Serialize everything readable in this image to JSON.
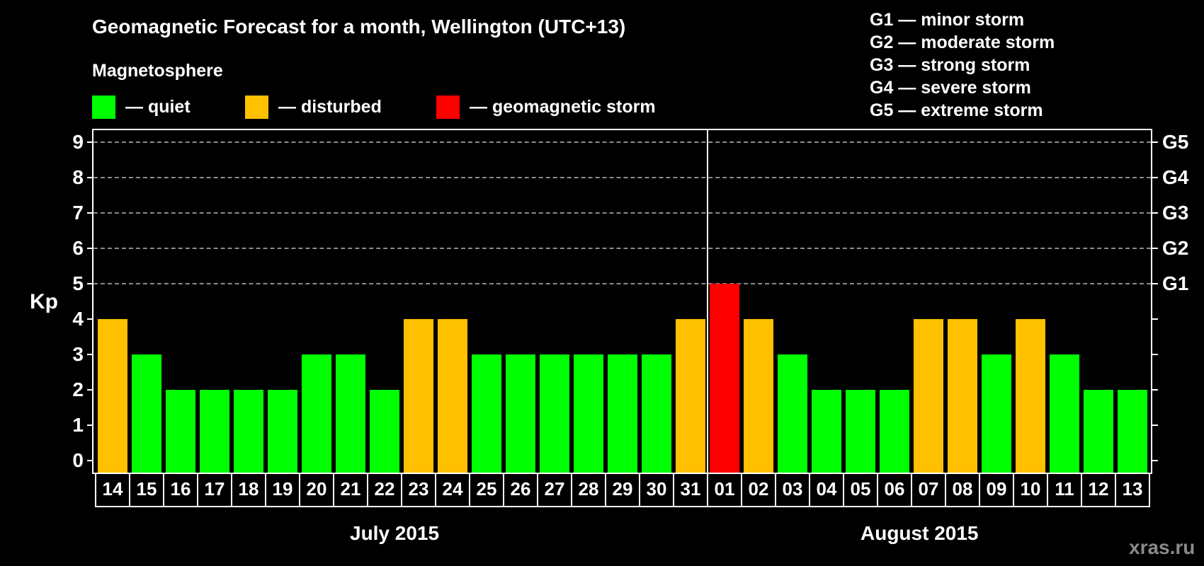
{
  "title": "Geomagnetic Forecast for a month, Wellington (UTC+13)",
  "subtitle": "Magnetosphere",
  "legend": [
    {
      "label": "— quiet",
      "color": "#00ff00"
    },
    {
      "label": "— disturbed",
      "color": "#ffc000"
    },
    {
      "label": "— geomagnetic storm",
      "color": "#ff0000"
    }
  ],
  "g_scale": [
    "G1 — minor storm",
    "G2 — moderate storm",
    "G3 — strong storm",
    "G4 — severe storm",
    "G5 — extreme storm"
  ],
  "axis": {
    "ylabel": "Kp",
    "left_ticks": [
      "0",
      "1",
      "2",
      "3",
      "4",
      "5",
      "6",
      "7",
      "8",
      "9"
    ],
    "right_ticks": [
      {
        "kp": 5,
        "label": "G1"
      },
      {
        "kp": 6,
        "label": "G2"
      },
      {
        "kp": 7,
        "label": "G3"
      },
      {
        "kp": 8,
        "label": "G4"
      },
      {
        "kp": 9,
        "label": "G5"
      }
    ]
  },
  "months": [
    {
      "label": "July 2015"
    },
    {
      "label": "August 2015"
    }
  ],
  "watermark": "xras.ru",
  "colors": {
    "quiet": "#00ff00",
    "disturbed": "#ffc000",
    "storm": "#ff0000"
  },
  "chart_data": {
    "type": "bar",
    "title": "Geomagnetic Forecast for a month, Wellington (UTC+13)",
    "xlabel": "",
    "ylabel": "Kp",
    "ylim": [
      0,
      9
    ],
    "grid": true,
    "legend_position": "top",
    "categories": [
      "14",
      "15",
      "16",
      "17",
      "18",
      "19",
      "20",
      "21",
      "22",
      "23",
      "24",
      "25",
      "26",
      "27",
      "28",
      "29",
      "30",
      "31",
      "01",
      "02",
      "03",
      "04",
      "05",
      "06",
      "07",
      "08",
      "09",
      "10",
      "11",
      "12",
      "13"
    ],
    "month_groups": [
      {
        "label": "July 2015",
        "from": "14",
        "to": "31"
      },
      {
        "label": "August 2015",
        "from": "01",
        "to": "13"
      }
    ],
    "values": [
      4,
      3,
      2,
      2,
      2,
      2,
      3,
      3,
      2,
      4,
      4,
      3,
      3,
      3,
      3,
      3,
      3,
      4,
      5,
      4,
      3,
      2,
      2,
      2,
      4,
      4,
      3,
      4,
      3,
      2,
      2
    ],
    "status": [
      "disturbed",
      "quiet",
      "quiet",
      "quiet",
      "quiet",
      "quiet",
      "quiet",
      "quiet",
      "quiet",
      "disturbed",
      "disturbed",
      "quiet",
      "quiet",
      "quiet",
      "quiet",
      "quiet",
      "quiet",
      "disturbed",
      "storm",
      "disturbed",
      "quiet",
      "quiet",
      "quiet",
      "quiet",
      "disturbed",
      "disturbed",
      "quiet",
      "disturbed",
      "quiet",
      "quiet",
      "quiet"
    ],
    "secondary_axis": {
      "5": "G1",
      "6": "G2",
      "7": "G3",
      "8": "G4",
      "9": "G5"
    },
    "legend": [
      "quiet",
      "disturbed",
      "geomagnetic storm"
    ]
  }
}
